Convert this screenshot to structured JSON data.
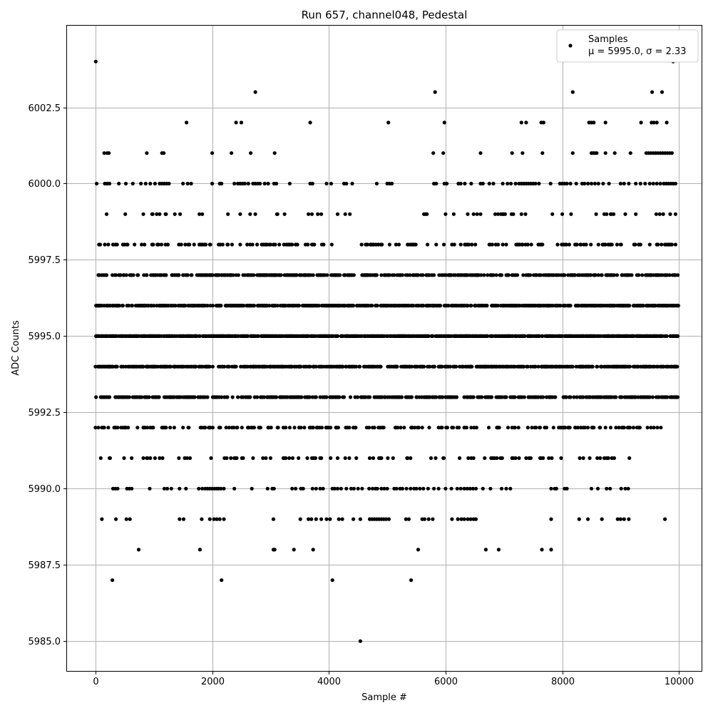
{
  "chart_data": {
    "type": "scatter",
    "title": "Run 657, channel048, Pedestal",
    "xlabel": "Sample #",
    "ylabel": "ADC Counts",
    "xlim": [
      -500,
      10400
    ],
    "ylim": [
      5984.0,
      6005.2
    ],
    "xticks": [
      0,
      2000,
      4000,
      6000,
      8000,
      10000
    ],
    "xtick_labels": [
      "0",
      "2000",
      "4000",
      "6000",
      "8000",
      "10000"
    ],
    "yticks": [
      5985.0,
      5987.5,
      5990.0,
      5992.5,
      5995.0,
      5997.5,
      6000.0,
      6002.5
    ],
    "ytick_labels": [
      "5985.0",
      "5987.5",
      "5990.0",
      "5992.5",
      "5995.0",
      "5997.5",
      "6000.0",
      "6002.5"
    ],
    "grid": true,
    "legend_position": "top-right",
    "legend": {
      "label": "Samples",
      "stats": "μ = 5995.0, σ = 2.33"
    },
    "marker_color": "#000000",
    "stats": {
      "mean": 5995.0,
      "sigma": 2.33
    },
    "n_samples": 10000,
    "sample_spacing": 10,
    "series": [
      {
        "label": "Samples",
        "levels": [
          {
            "y": 6004,
            "x": [
              5,
              9900
            ]
          },
          {
            "y": 6003,
            "x": [
              2740,
              5820,
              8180,
              9540,
              9710
            ]
          },
          {
            "y": 6002,
            "x": [
              1560,
              2410,
              2500,
              3680,
              5020,
              5980,
              7300,
              7380,
              7640,
              7680,
              8460,
              8500,
              8540,
              8740,
              9350,
              9530,
              9570,
              9620,
              9790
            ]
          },
          {
            "y": 6001,
            "x": [
              150,
              200,
              230,
              880,
              1140,
              1170,
              2000,
              2330,
              2660,
              3070,
              5790,
              5960,
              6600,
              7140,
              7320,
              7660,
              8180,
              8500,
              8530,
              8560,
              8590,
              8740,
              8900,
              9170,
              9440,
              9480,
              9520,
              9560,
              9600,
              9640,
              9680,
              9720,
              9760,
              9800,
              9840,
              9880
            ]
          },
          {
            "y": 6000,
            "x": [
              20,
              160,
              200,
              240,
              400,
              520,
              640,
              780,
              860,
              940,
              1020,
              1100,
              1140,
              1180,
              1220,
              1260,
              1500,
              1580,
              1640,
              2000,
              2130,
              2160,
              2380,
              2440,
              2480,
              2520,
              2560,
              2620,
              2700,
              2740,
              2780,
              2820,
              2900,
              2960,
              3060,
              3100,
              3330,
              3680,
              3720,
              3960,
              4040,
              4260,
              4300,
              4400,
              4820,
              5000,
              5040,
              5080,
              5800,
              5840,
              5980,
              6020,
              6220,
              6260,
              6330,
              6440,
              6600,
              6640,
              6750,
              6820,
              6980,
              7060,
              7120,
              7200,
              7260,
              7300,
              7340,
              7380,
              7420,
              7460,
              7500,
              7540,
              7600,
              7800,
              7960,
              8000,
              8040,
              8080,
              8140,
              8240,
              8340,
              8380,
              8440,
              8500,
              8560,
              8620,
              8700,
              8800,
              9000,
              9060,
              9140,
              9260,
              9340,
              9420,
              9500,
              9560,
              9620,
              9680,
              9740,
              9780,
              9820,
              9860,
              9900,
              9940
            ]
          },
          {
            "y": 5999,
            "density": 0.08,
            "gaps": [
              [
                1900,
                2250
              ],
              [
                3350,
                3600
              ],
              [
                4500,
                5200
              ],
              [
                5300,
                5600
              ],
              [
                6700,
                6800
              ]
            ]
          },
          {
            "y": 5998,
            "density": 0.18,
            "gaps": [
              [
                4380,
                4550
              ],
              [
                5700,
                5830
              ],
              [
                6000,
                6100
              ],
              [
                9100,
                9200
              ]
            ]
          },
          {
            "y": 5997,
            "density": 0.4,
            "gaps": []
          },
          {
            "y": 5996,
            "density": 0.55,
            "gaps": []
          },
          {
            "y": 5995,
            "density": 0.65,
            "gaps": []
          },
          {
            "y": 5994,
            "density": 0.52,
            "gaps": []
          },
          {
            "y": 5993,
            "density": 0.4,
            "gaps": []
          },
          {
            "y": 5992,
            "density": 0.18,
            "gaps": [
              [
                9700,
                10000
              ]
            ]
          },
          {
            "y": 5991,
            "density": 0.09,
            "gaps": [
              [
                9260,
                9700
              ],
              [
                9760,
                10000
              ]
            ]
          },
          {
            "y": 5990,
            "x": [
              300,
              340,
              380,
              540,
              580,
              620,
              930,
              1180,
              1230,
              1300,
              1440,
              1550,
              1770,
              1830,
              1880,
              1920,
              1960,
              2000,
              2040,
              2080,
              2110,
              2150,
              2200,
              2380,
              2680,
              2950,
              3030,
              3060,
              3370,
              3430,
              3520,
              3560,
              3720,
              3780,
              3850,
              3900,
              4060,
              4100,
              4150,
              4210,
              4300,
              4380,
              4430,
              4500,
              4570,
              4690,
              4750,
              4800,
              4830,
              4900,
              4950,
              5000,
              5120,
              5160,
              5220,
              5260,
              5330,
              5400,
              5460,
              5500,
              5560,
              5620,
              5700,
              5800,
              5880,
              6000,
              6100,
              6200,
              6260,
              6320,
              6370,
              6420,
              6470,
              6520,
              6640,
              6770,
              6960,
              7040,
              7110,
              7810,
              7870,
              7900,
              8040,
              8080,
              8500,
              8610,
              8760,
              8820,
              9010,
              9080,
              9130
            ]
          },
          {
            "y": 5989,
            "x": [
              110,
              350,
              530,
              590,
              1440,
              1510,
              1820,
              1960,
              2030,
              2080,
              2130,
              2200,
              3050,
              3510,
              3650,
              3700,
              3780,
              3870,
              3960,
              4020,
              4170,
              4230,
              4420,
              4540,
              4700,
              4740,
              4780,
              4820,
              4860,
              4900,
              4940,
              4980,
              5030,
              5320,
              5370,
              5600,
              5640,
              5710,
              5780,
              6110,
              6210,
              6270,
              6320,
              6380,
              6430,
              6480,
              6520,
              7810,
              8290,
              8440,
              8680,
              8950,
              9000,
              9060,
              9140,
              9760
            ]
          },
          {
            "y": 5988,
            "x": [
              740,
              1790,
              3050,
              3070,
              3400,
              3730,
              5530,
              6690,
              6910,
              7650,
              7810
            ]
          },
          {
            "y": 5987,
            "x": [
              290,
              2160,
              4060,
              5410
            ]
          },
          {
            "y": 5985,
            "x": [
              4540
            ]
          }
        ]
      }
    ]
  }
}
